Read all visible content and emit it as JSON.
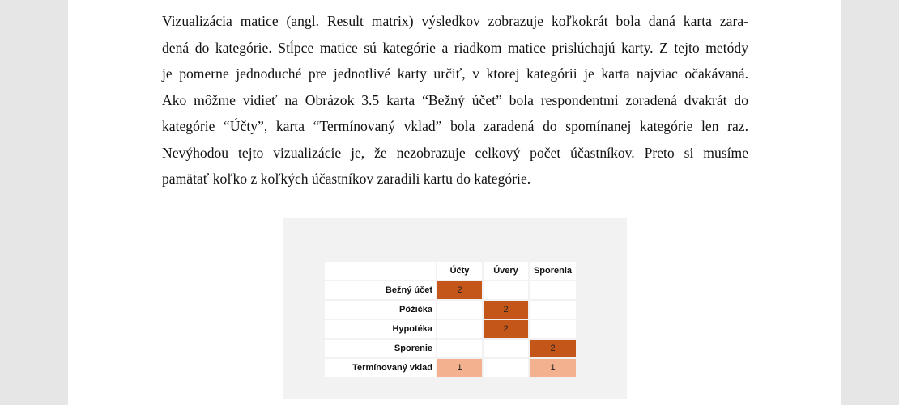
{
  "paragraph": {
    "lines": [
      "Vizualizácia matice (angl. Result matrix) výsledkov zobrazuje koľkokrát bola daná karta zara-",
      "dená do kategórie. Stĺpce matice sú kategórie a riadkom matice prislúchajú karty. Z tejto metódy",
      "je pomerne jednoduché pre jednotlivé karty určiť, v ktorej kategórii je karta najviac očakávaná.",
      "Ako môžme vidieť na Obrázok 3.5 karta “Bežný účet” bola respondentmi zoradená dvakrát do",
      "kategórie “Účty”, karta “Termínovaný vklad” bola zaradená do spomínanej kategórie len raz.",
      "Nevýhodou tejto vizualizácie je, že nezobrazuje celkový počet účastníkov. Preto si musíme",
      "pamätať koľko z koľkých účastníkov zaradili kartu do kategórie."
    ]
  },
  "matrix": {
    "columns": [
      "Účty",
      "Úvery",
      "Sporenia"
    ],
    "rows": [
      {
        "label": "Bežný účet",
        "cells": [
          "2",
          "",
          ""
        ]
      },
      {
        "label": "Pôžička",
        "cells": [
          "",
          "2",
          ""
        ]
      },
      {
        "label": "Hypotéka",
        "cells": [
          "",
          "2",
          ""
        ]
      },
      {
        "label": "Sporenie",
        "cells": [
          "",
          "",
          "2"
        ]
      },
      {
        "label": "Termínovaný vklad",
        "cells": [
          "1",
          "",
          "1"
        ]
      }
    ],
    "colors": {
      "high": "#c5561a",
      "low": "#f4b18f"
    }
  }
}
